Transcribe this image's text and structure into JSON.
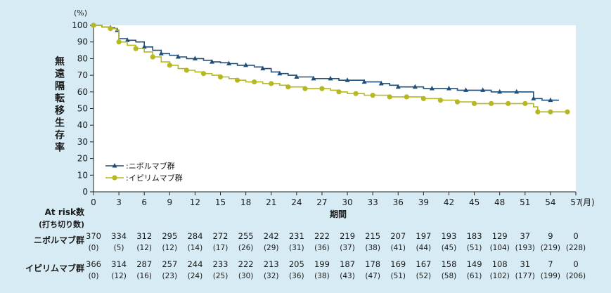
{
  "chart_data": {
    "type": "line",
    "ylabel_unit": "(%)",
    "ylabel": "無遠隔転移生存率",
    "xlabel": "期間",
    "x_unit": "(月)",
    "xlim": [
      0,
      57
    ],
    "ylim": [
      0,
      100
    ],
    "x_ticks": [
      "0",
      "3",
      "6",
      "9",
      "12",
      "15",
      "18",
      "21",
      "24",
      "27",
      "30",
      "33",
      "36",
      "39",
      "42",
      "45",
      "48",
      "51",
      "54",
      "57"
    ],
    "y_ticks": [
      "0",
      "10",
      "20",
      "30",
      "40",
      "50",
      "60",
      "70",
      "80",
      "90",
      "100"
    ],
    "legend_position": "lower-left",
    "series": [
      {
        "name": ":ニボルマブ群",
        "color": "#1f4e79",
        "marker": "triangle",
        "points": [
          [
            0,
            100
          ],
          [
            1,
            99
          ],
          [
            2,
            98.5
          ],
          [
            2.5,
            98
          ],
          [
            2.8,
            97
          ],
          [
            3,
            92
          ],
          [
            4,
            91
          ],
          [
            5,
            90
          ],
          [
            6,
            87
          ],
          [
            7,
            85
          ],
          [
            8,
            83
          ],
          [
            9,
            82
          ],
          [
            10,
            81
          ],
          [
            11,
            80
          ],
          [
            12,
            80
          ],
          [
            13,
            79
          ],
          [
            14,
            78
          ],
          [
            15,
            77.5
          ],
          [
            16,
            77
          ],
          [
            17,
            76
          ],
          [
            18,
            76
          ],
          [
            19,
            75
          ],
          [
            20,
            74
          ],
          [
            21,
            72
          ],
          [
            22,
            71
          ],
          [
            23,
            70
          ],
          [
            24,
            69
          ],
          [
            25,
            69
          ],
          [
            26,
            68
          ],
          [
            27,
            68
          ],
          [
            28,
            68
          ],
          [
            29,
            67
          ],
          [
            30,
            67
          ],
          [
            31,
            67
          ],
          [
            32,
            66
          ],
          [
            33,
            66
          ],
          [
            34,
            65
          ],
          [
            35,
            64
          ],
          [
            36,
            63
          ],
          [
            37,
            63
          ],
          [
            38,
            63
          ],
          [
            39,
            62
          ],
          [
            40,
            62
          ],
          [
            41,
            62
          ],
          [
            42,
            62
          ],
          [
            43,
            61
          ],
          [
            44,
            61
          ],
          [
            45,
            61
          ],
          [
            46,
            61
          ],
          [
            47,
            60
          ],
          [
            48,
            60
          ],
          [
            49,
            60
          ],
          [
            50,
            60
          ],
          [
            51,
            60
          ],
          [
            52,
            56
          ],
          [
            53,
            55
          ],
          [
            54,
            55
          ],
          [
            55,
            55
          ]
        ]
      },
      {
        "name": ":イピリムマブ群",
        "color": "#b5b81f",
        "marker": "circle",
        "points": [
          [
            0,
            100
          ],
          [
            1,
            99
          ],
          [
            2,
            98
          ],
          [
            2.7,
            97
          ],
          [
            3,
            90
          ],
          [
            4,
            88
          ],
          [
            5,
            86
          ],
          [
            6,
            84
          ],
          [
            7,
            81
          ],
          [
            8,
            78
          ],
          [
            9,
            76
          ],
          [
            10,
            74
          ],
          [
            11,
            73
          ],
          [
            12,
            72
          ],
          [
            13,
            71
          ],
          [
            14,
            70
          ],
          [
            15,
            69
          ],
          [
            16,
            68
          ],
          [
            17,
            67
          ],
          [
            18,
            66
          ],
          [
            19,
            66
          ],
          [
            20,
            65
          ],
          [
            21,
            65
          ],
          [
            22,
            64
          ],
          [
            23,
            63
          ],
          [
            24,
            63
          ],
          [
            25,
            62
          ],
          [
            26,
            62
          ],
          [
            27,
            62
          ],
          [
            28,
            61
          ],
          [
            29,
            60
          ],
          [
            30,
            59
          ],
          [
            31,
            59
          ],
          [
            32,
            58
          ],
          [
            33,
            58
          ],
          [
            34,
            58
          ],
          [
            35,
            57
          ],
          [
            36,
            57
          ],
          [
            37,
            57
          ],
          [
            38,
            57
          ],
          [
            39,
            56
          ],
          [
            40,
            56
          ],
          [
            41,
            55
          ],
          [
            42,
            55
          ],
          [
            43,
            54
          ],
          [
            44,
            54
          ],
          [
            45,
            53
          ],
          [
            46,
            53
          ],
          [
            47,
            53
          ],
          [
            48,
            53
          ],
          [
            49,
            53
          ],
          [
            50,
            53
          ],
          [
            51,
            53
          ],
          [
            52,
            51
          ],
          [
            52.5,
            48
          ],
          [
            53,
            48
          ],
          [
            54,
            48
          ],
          [
            55,
            48
          ],
          [
            56,
            48
          ]
        ]
      }
    ],
    "risk_table": {
      "header_label": "At risk数",
      "header_sub": "(打ち切り数)",
      "rows": [
        {
          "label": "ニボルマブ群",
          "counts": [
            "370",
            "334",
            "312",
            "295",
            "284",
            "272",
            "255",
            "242",
            "231",
            "222",
            "219",
            "215",
            "207",
            "197",
            "193",
            "183",
            "129",
            "37",
            "9",
            "0"
          ],
          "censored": [
            "(0)",
            "(5)",
            "(12)",
            "(12)",
            "(14)",
            "(17)",
            "(26)",
            "(29)",
            "(31)",
            "(36)",
            "(37)",
            "(38)",
            "(41)",
            "(44)",
            "(45)",
            "(51)",
            "(104)",
            "(193)",
            "(219)",
            "(228)"
          ]
        },
        {
          "label": "イピリムマブ群",
          "counts": [
            "366",
            "314",
            "287",
            "257",
            "244",
            "233",
            "222",
            "213",
            "205",
            "199",
            "187",
            "178",
            "169",
            "167",
            "158",
            "149",
            "108",
            "31",
            "7",
            "0"
          ],
          "censored": [
            "(0)",
            "(12)",
            "(16)",
            "(23)",
            "(24)",
            "(25)",
            "(30)",
            "(32)",
            "(36)",
            "(38)",
            "(43)",
            "(47)",
            "(51)",
            "(52)",
            "(58)",
            "(61)",
            "(102)",
            "(177)",
            "(199)",
            "(206)"
          ]
        }
      ]
    }
  }
}
